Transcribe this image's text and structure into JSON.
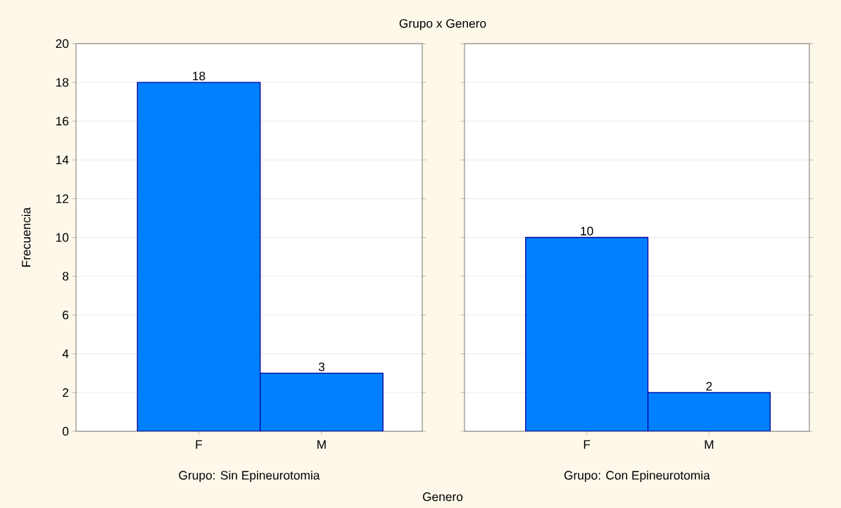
{
  "chart_data": [
    {
      "type": "bar",
      "title": "Grupo x Genero",
      "xlabel": "Grupo: Sin Epineurotomia",
      "ylabel": "Frecuencia",
      "categories": [
        "F",
        "M"
      ],
      "values": [
        18,
        3
      ],
      "color": "#0080ff",
      "ylim": [
        0,
        20
      ],
      "yticks": [
        0,
        2,
        4,
        6,
        8,
        10,
        12,
        14,
        16,
        18,
        20
      ],
      "grid": "y",
      "data_labels": true
    },
    {
      "type": "bar",
      "xlabel": "Grupo: Con Epineurotomia",
      "annotations": [
        "Genero"
      ],
      "categories": [
        "F",
        "M"
      ],
      "values": [
        10,
        2
      ],
      "color": "#0080ff",
      "ylim": [
        0,
        20
      ],
      "yticks": [
        0,
        2,
        4,
        6,
        8,
        10,
        12,
        14,
        16,
        18,
        20
      ],
      "grid": "y",
      "data_labels": true,
      "tick_labels": "x"
    }
  ]
}
